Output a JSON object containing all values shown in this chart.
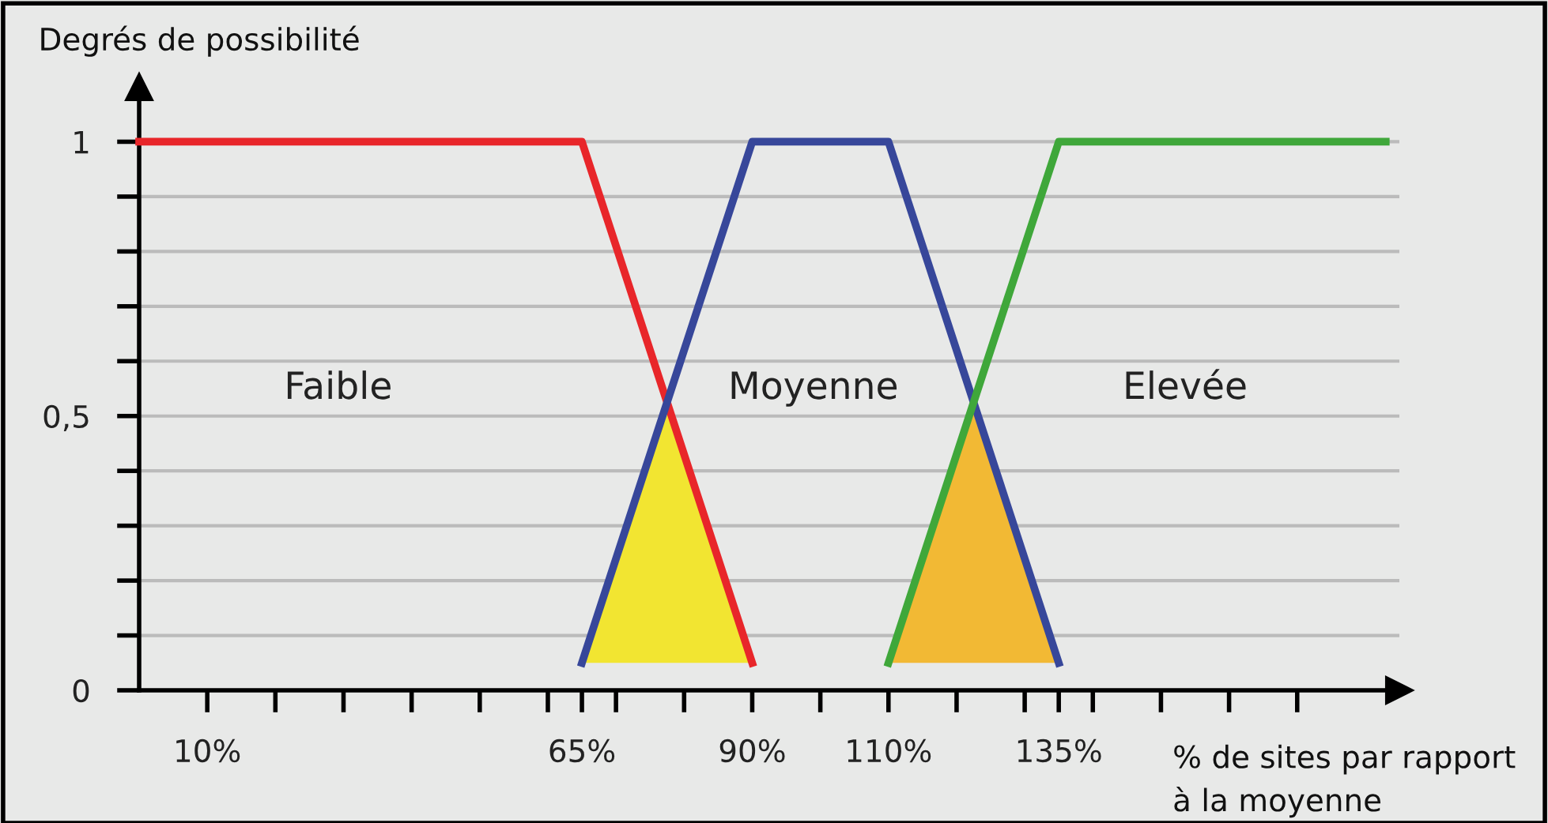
{
  "chart_data": {
    "type": "line",
    "xlabel": "% de sites par rapport\nà la moyenne",
    "ylabel": "Degrés de possibilité",
    "xlim": [
      0,
      185
    ],
    "ylim": [
      0,
      1.1
    ],
    "xticks": [
      {
        "value": 10,
        "label": "10%"
      },
      {
        "value": 20,
        "label": null
      },
      {
        "value": 30,
        "label": null
      },
      {
        "value": 40,
        "label": null
      },
      {
        "value": 50,
        "label": null
      },
      {
        "value": 60,
        "label": null
      },
      {
        "value": 65,
        "label": "65%"
      },
      {
        "value": 70,
        "label": null
      },
      {
        "value": 80,
        "label": null
      },
      {
        "value": 90,
        "label": "90%"
      },
      {
        "value": 100,
        "label": null
      },
      {
        "value": 110,
        "label": "110%"
      },
      {
        "value": 120,
        "label": null
      },
      {
        "value": 130,
        "label": null
      },
      {
        "value": 135,
        "label": "135%"
      },
      {
        "value": 140,
        "label": null
      },
      {
        "value": 150,
        "label": null
      },
      {
        "value": 160,
        "label": null
      },
      {
        "value": 170,
        "label": null
      }
    ],
    "yticks": [
      {
        "value": 0,
        "label": "0"
      },
      {
        "value": 0.1,
        "label": null
      },
      {
        "value": 0.2,
        "label": null
      },
      {
        "value": 0.3,
        "label": null
      },
      {
        "value": 0.4,
        "label": null
      },
      {
        "value": 0.5,
        "label": "0,5"
      },
      {
        "value": 0.6,
        "label": null
      },
      {
        "value": 0.7,
        "label": null
      },
      {
        "value": 0.8,
        "label": null
      },
      {
        "value": 0.9,
        "label": null
      },
      {
        "value": 1,
        "label": "1"
      }
    ],
    "grid": "y",
    "marker": "none",
    "line_style": "solid",
    "series": [
      {
        "type": "area",
        "color": "#f2e531",
        "x": [
          65,
          77.5,
          90,
          65
        ],
        "values": [
          0.05,
          0.525,
          0.05,
          0.05
        ]
      },
      {
        "type": "area",
        "color": "#f2b934",
        "x": [
          110,
          122.5,
          135,
          110
        ],
        "values": [
          0.05,
          0.525,
          0.05,
          0.05
        ]
      },
      {
        "color": "#e8262a",
        "x": [
          0,
          65,
          90
        ],
        "values": [
          1,
          1,
          0.05
        ]
      },
      {
        "color": "#37479a",
        "x": [
          65,
          90,
          110,
          135
        ],
        "values": [
          0.05,
          1,
          1,
          0.05
        ]
      },
      {
        "color": "#3fa73a",
        "x": [
          110,
          135,
          183
        ],
        "values": [
          0.05,
          1,
          1
        ]
      }
    ],
    "annotations": [
      "Faible",
      "Moyenne",
      "Elevée"
    ]
  }
}
